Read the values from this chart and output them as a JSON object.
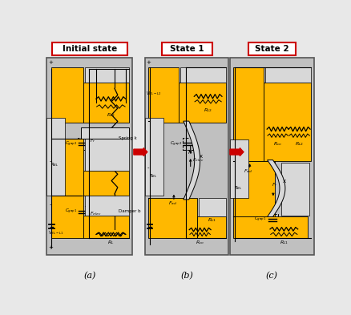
{
  "title_a": "Initial state",
  "title_b": "State 1",
  "title_c": "State 2",
  "label_a": "(a)",
  "label_b": "(b)",
  "label_c": "(c)",
  "bg_color": "#e8e8e8",
  "yellow": "#FFB800",
  "gray_panel": "#c0c0c0",
  "gray_light": "#d8d8d8",
  "white": "#ffffff",
  "black": "#000000",
  "red": "#cc0000",
  "blue_tint": "#dce8f0"
}
